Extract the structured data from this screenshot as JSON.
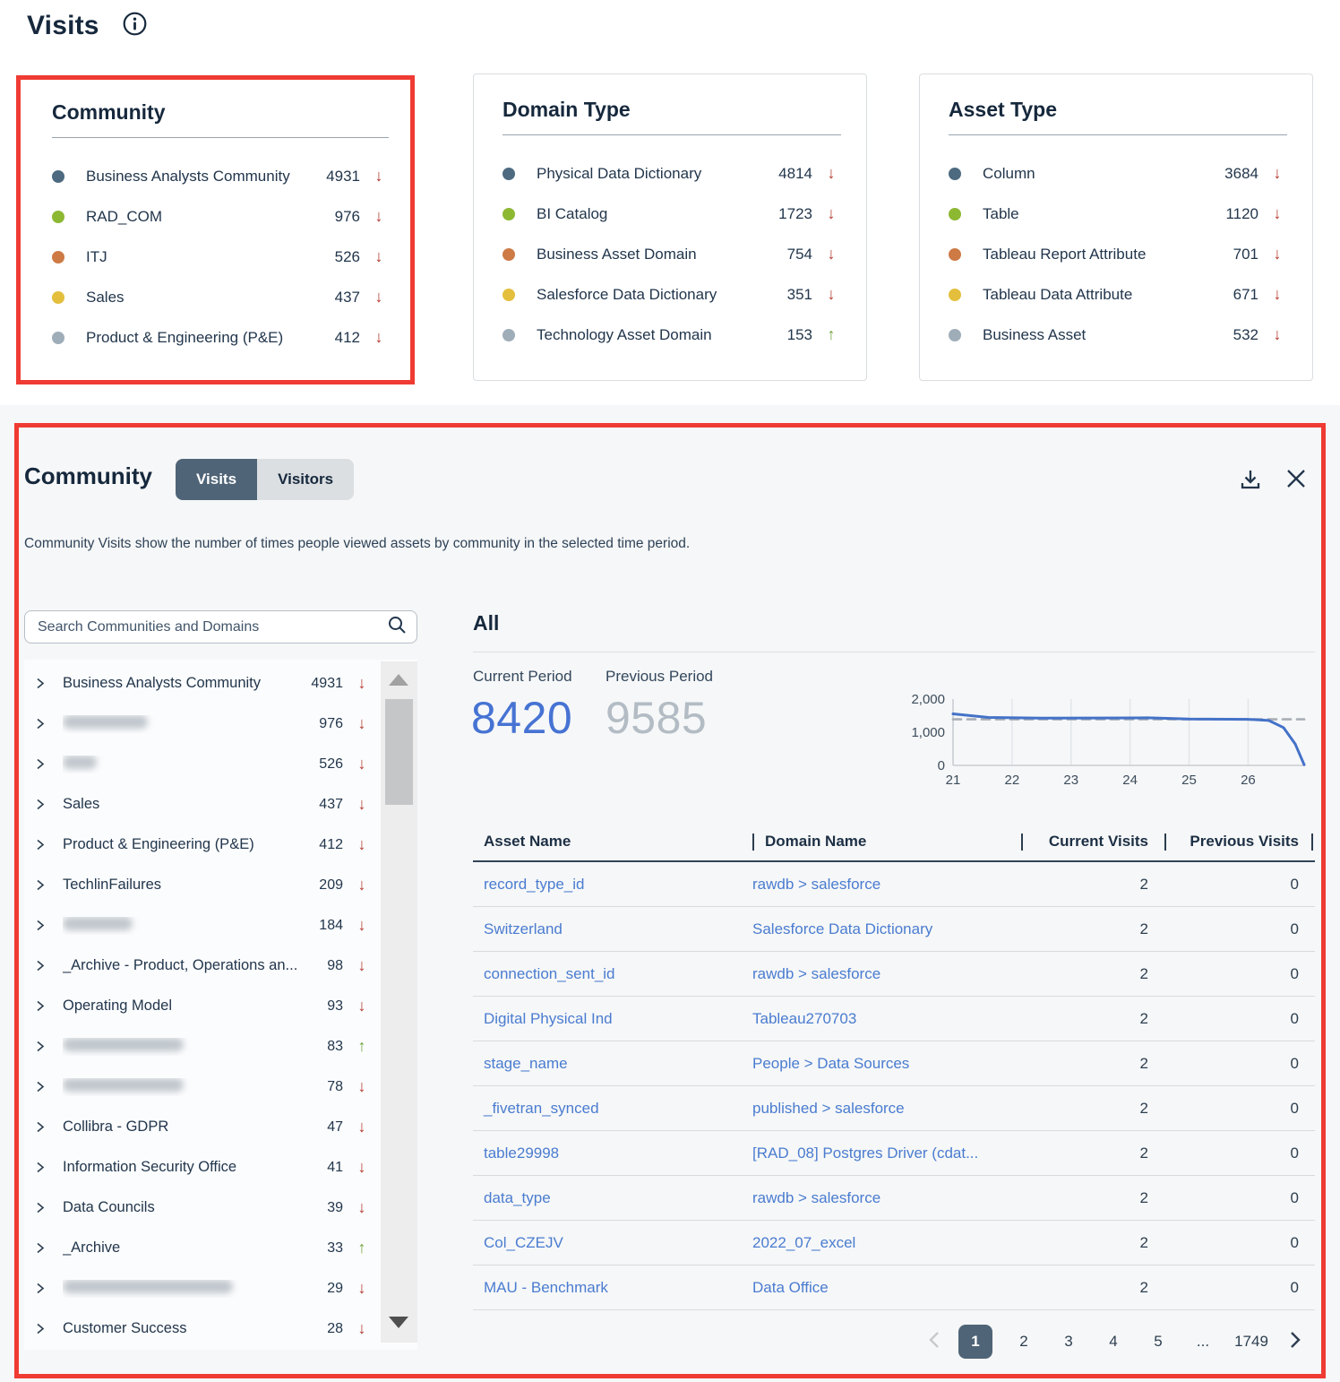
{
  "page": {
    "title": "Visits"
  },
  "colors": {
    "annotation_red": "#ef3b33",
    "trend_down_red": "#b5382f",
    "trend_up_green": "#6fa43c",
    "link_blue": "#4a7cd0",
    "current_period_blue": "#4673d3",
    "previous_period_gray": "#b3bcc4",
    "active_tab_slate": "#4f6477"
  },
  "legend_dot_colors": [
    "#4d6a80",
    "#8db832",
    "#cd7a45",
    "#e3bf3d",
    "#9fadb8"
  ],
  "summary_cards": [
    {
      "title": "Community",
      "items": [
        {
          "label": "Business Analysts Community",
          "value": "4931",
          "trend": "down"
        },
        {
          "label": "RAD_COM",
          "value": "976",
          "trend": "down"
        },
        {
          "label": "ITJ",
          "value": "526",
          "trend": "down"
        },
        {
          "label": "Sales",
          "value": "437",
          "trend": "down"
        },
        {
          "label": "Product & Engineering (P&E)",
          "value": "412",
          "trend": "down"
        }
      ]
    },
    {
      "title": "Domain Type",
      "items": [
        {
          "label": "Physical Data Dictionary",
          "value": "4814",
          "trend": "down"
        },
        {
          "label": "BI Catalog",
          "value": "1723",
          "trend": "down"
        },
        {
          "label": "Business Asset Domain",
          "value": "754",
          "trend": "down"
        },
        {
          "label": "Salesforce Data Dictionary",
          "value": "351",
          "trend": "down"
        },
        {
          "label": "Technology Asset Domain",
          "value": "153",
          "trend": "up"
        }
      ]
    },
    {
      "title": "Asset Type",
      "items": [
        {
          "label": "Column",
          "value": "3684",
          "trend": "down"
        },
        {
          "label": "Table",
          "value": "1120",
          "trend": "down"
        },
        {
          "label": "Tableau Report Attribute",
          "value": "701",
          "trend": "down"
        },
        {
          "label": "Tableau Data Attribute",
          "value": "671",
          "trend": "down"
        },
        {
          "label": "Business Asset",
          "value": "532",
          "trend": "down"
        }
      ]
    }
  ],
  "panel": {
    "title": "Community",
    "tabs": [
      {
        "label": "Visits",
        "active": true
      },
      {
        "label": "Visitors",
        "active": false
      }
    ],
    "description": "Community Visits show the number of times people viewed assets by community in the selected time period.",
    "search": {
      "placeholder": "Search Communities and Domains"
    },
    "tree": [
      {
        "label": "Business Analysts Community",
        "value": "4931",
        "trend": "down"
      },
      {
        "label": "",
        "redacted": true,
        "blur_width": 95,
        "value": "976",
        "trend": "down"
      },
      {
        "label": "",
        "redacted": true,
        "blur_width": 38,
        "value": "526",
        "trend": "down"
      },
      {
        "label": "Sales",
        "value": "437",
        "trend": "down"
      },
      {
        "label": "Product & Engineering (P&E)",
        "value": "412",
        "trend": "down"
      },
      {
        "label": "TechlinFailures",
        "value": "209",
        "trend": "down"
      },
      {
        "label": "",
        "redacted": true,
        "blur_width": 78,
        "value": "184",
        "trend": "down"
      },
      {
        "label": "_Archive - Product, Operations an...",
        "value": "98",
        "trend": "down"
      },
      {
        "label": "Operating Model",
        "value": "93",
        "trend": "down"
      },
      {
        "label": "",
        "redacted": true,
        "blur_width": 135,
        "value": "83",
        "trend": "up"
      },
      {
        "label": "",
        "redacted": true,
        "blur_width": 135,
        "value": "78",
        "trend": "down"
      },
      {
        "label": "Collibra - GDPR",
        "value": "47",
        "trend": "down"
      },
      {
        "label": "Information Security Office",
        "value": "41",
        "trend": "down"
      },
      {
        "label": "Data Councils",
        "value": "39",
        "trend": "down"
      },
      {
        "label": "_Archive",
        "value": "33",
        "trend": "up"
      },
      {
        "label": "",
        "redacted": true,
        "blur_width": 190,
        "value": "29",
        "trend": "down"
      },
      {
        "label": "Customer Success",
        "value": "28",
        "trend": "down"
      }
    ],
    "detail": {
      "heading": "All",
      "current_period_label": "Current Period",
      "current_period_value": "8420",
      "previous_period_label": "Previous Period",
      "previous_period_value": "9585",
      "table": {
        "columns": [
          "Asset Name",
          "Domain Name",
          "Current Visits",
          "Previous Visits"
        ],
        "rows": [
          {
            "asset": "record_type_id",
            "domain": "rawdb > salesforce",
            "current": "2",
            "previous": "0"
          },
          {
            "asset": "Switzerland",
            "domain": "Salesforce Data Dictionary",
            "current": "2",
            "previous": "0"
          },
          {
            "asset": "connection_sent_id",
            "domain": "rawdb > salesforce",
            "current": "2",
            "previous": "0"
          },
          {
            "asset": "Digital Physical Ind",
            "domain": "Tableau270703",
            "current": "2",
            "previous": "0"
          },
          {
            "asset": "stage_name",
            "domain": "People > Data Sources",
            "current": "2",
            "previous": "0"
          },
          {
            "asset": "_fivetran_synced",
            "domain": "published > salesforce",
            "current": "2",
            "previous": "0"
          },
          {
            "asset": "table29998",
            "domain": "[RAD_08] Postgres Driver (cdat...",
            "current": "2",
            "previous": "0"
          },
          {
            "asset": "data_type",
            "domain": "rawdb > salesforce",
            "current": "2",
            "previous": "0"
          },
          {
            "asset": "Col_CZEJV",
            "domain": "2022_07_excel",
            "current": "2",
            "previous": "0"
          },
          {
            "asset": "MAU - Benchmark",
            "domain": "Data Office",
            "current": "2",
            "previous": "0"
          }
        ]
      },
      "pagination": {
        "pages": [
          "1",
          "2",
          "3",
          "4",
          "5",
          "...",
          "1749"
        ],
        "active": "1"
      }
    }
  },
  "chart_data": {
    "type": "line",
    "title": "",
    "xlabel": "",
    "ylabel": "",
    "xlim": [
      21,
      26.95
    ],
    "ylim": [
      0,
      2000
    ],
    "x_ticks": [
      21,
      22,
      23,
      24,
      25,
      26
    ],
    "y_ticks": [
      0,
      1000,
      2000
    ],
    "y_tick_labels": [
      "0",
      "1,000",
      "2,000"
    ],
    "grid": "vertical",
    "legend": "none",
    "series": [
      {
        "name": "Current Period",
        "style": "solid",
        "color": "#4472c8",
        "points": [
          [
            21,
            1555
          ],
          [
            21.6,
            1445
          ],
          [
            22.5,
            1425
          ],
          [
            23.5,
            1430
          ],
          [
            24.3,
            1435
          ],
          [
            25,
            1400
          ],
          [
            26,
            1390
          ],
          [
            26.35,
            1355
          ],
          [
            26.6,
            1140
          ],
          [
            26.8,
            640
          ],
          [
            26.95,
            20
          ]
        ]
      },
      {
        "name": "Previous Period",
        "style": "dashed",
        "color": "#a8afb5",
        "points": [
          [
            21,
            1390
          ],
          [
            26.95,
            1390
          ]
        ]
      }
    ]
  }
}
